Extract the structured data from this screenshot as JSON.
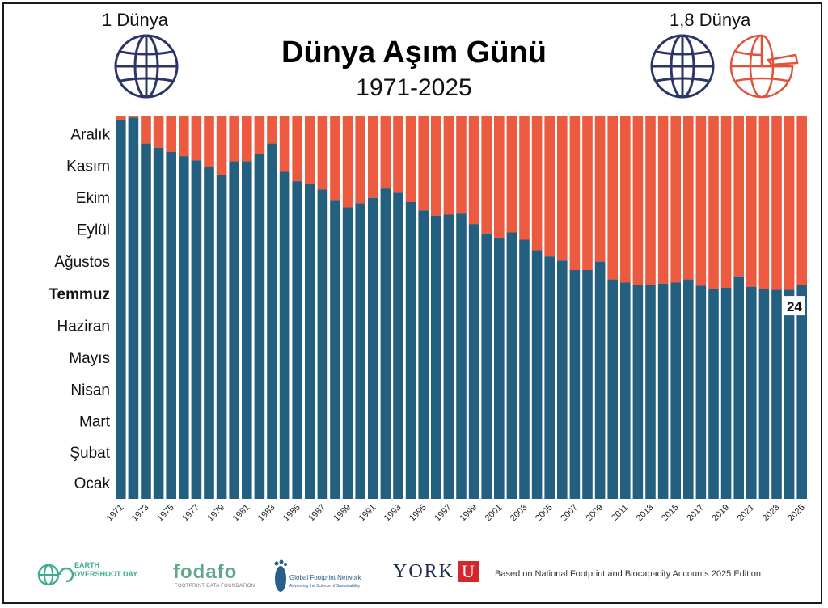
{
  "header": {
    "title": "Dünya Aşım Günü",
    "subtitle": "1971-2025",
    "left_globe_label": "1 Dünya",
    "right_globe_label": "1,8 Dünya"
  },
  "colors": {
    "within": "#236080",
    "overshoot": "#ec5a40",
    "globe_outline": "#2b3566",
    "globe_partial": "#e0533a"
  },
  "chart_data": {
    "type": "bar",
    "title": "Dünya Aşım Günü",
    "subtitle": "1971-2025",
    "xlabel": "",
    "ylabel": "",
    "y_categories": [
      "Ocak",
      "Şubat",
      "Mart",
      "Nisan",
      "Mayıs",
      "Haziran",
      "Temmuz",
      "Ağustos",
      "Eylül",
      "Ekim",
      "Kasım",
      "Aralık"
    ],
    "highlighted_month": "Temmuz",
    "ylim": [
      1,
      366
    ],
    "x_tick_labels": [
      "1971",
      "1973",
      "1975",
      "1977",
      "1979",
      "1981",
      "1983",
      "1985",
      "1987",
      "1989",
      "1991",
      "1993",
      "1995",
      "1997",
      "1999",
      "2001",
      "2003",
      "2005",
      "2007",
      "2009",
      "2011",
      "2013",
      "2015",
      "2017",
      "2019",
      "2021",
      "2023",
      "2025"
    ],
    "x": [
      1971,
      1972,
      1973,
      1974,
      1975,
      1976,
      1977,
      1978,
      1979,
      1980,
      1981,
      1982,
      1983,
      1984,
      1985,
      1986,
      1987,
      1988,
      1989,
      1990,
      1991,
      1992,
      1993,
      1994,
      1995,
      1996,
      1997,
      1998,
      1999,
      2000,
      2001,
      2002,
      2003,
      2004,
      2005,
      2006,
      2007,
      2008,
      2009,
      2010,
      2011,
      2012,
      2013,
      2014,
      2015,
      2016,
      2017,
      2018,
      2019,
      2020,
      2021,
      2022,
      2023,
      2024,
      2025
    ],
    "overshoot_day_of_year": [
      363,
      365,
      340,
      336,
      332,
      328,
      324,
      318,
      310,
      323,
      323,
      330,
      340,
      313,
      304,
      301,
      296,
      286,
      279,
      283,
      288,
      297,
      293,
      284,
      276,
      271,
      272,
      273,
      263,
      254,
      250,
      255,
      248,
      238,
      232,
      228,
      219,
      219,
      227,
      210,
      207,
      205,
      205,
      206,
      207,
      210,
      204,
      201,
      202,
      213,
      203,
      201,
      200,
      200,
      205
    ],
    "annotation": "24",
    "legend": null
  },
  "footer": {
    "eod_logo_text": "EARTH OVERSHOOT DAY",
    "fodafo_logo": "fodafo",
    "fodafo_sub": "FOOTPRINT DATA FOUNDATION",
    "gfn_logo": "Global Footprint Network",
    "gfn_sub": "Advancing the Science of Sustainability",
    "york_logo": "YORK",
    "york_u": "U",
    "note": "Based on National Footprint and Biocapacity Accounts 2025 Edition"
  }
}
